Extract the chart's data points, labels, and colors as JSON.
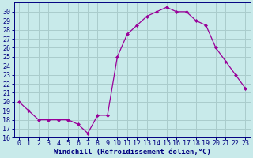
{
  "hours": [
    0,
    1,
    2,
    3,
    4,
    5,
    6,
    7,
    8,
    9,
    10,
    11,
    12,
    13,
    14,
    15,
    16,
    17,
    18,
    19,
    20,
    21,
    22,
    23
  ],
  "values": [
    20,
    19,
    18,
    18,
    18,
    18,
    17.5,
    16.5,
    18.5,
    18.5,
    25,
    27.5,
    28.5,
    29.5,
    30,
    30.5,
    30,
    30,
    29,
    28.5,
    26,
    24.5,
    23,
    21.5
  ],
  "line_color": "#990099",
  "marker": "D",
  "marker_size": 2,
  "bg_color": "#c8eaea",
  "grid_color": "#aacccc",
  "xlabel": "Windchill (Refroidissement éolien,°C)",
  "ylim": [
    16,
    31
  ],
  "xlim": [
    -0.5,
    23.5
  ],
  "yticks": [
    16,
    17,
    18,
    19,
    20,
    21,
    22,
    23,
    24,
    25,
    26,
    27,
    28,
    29,
    30
  ],
  "xticks": [
    0,
    1,
    2,
    3,
    4,
    5,
    6,
    7,
    8,
    9,
    10,
    11,
    12,
    13,
    14,
    15,
    16,
    17,
    18,
    19,
    20,
    21,
    22,
    23
  ],
  "label_fontsize": 6.5,
  "tick_fontsize": 6,
  "label_color": "#000080",
  "spine_color": "#000080",
  "line_width": 0.9
}
